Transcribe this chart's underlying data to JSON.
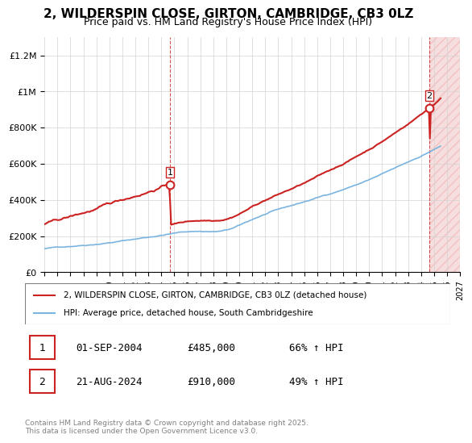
{
  "title": "2, WILDERSPIN CLOSE, GIRTON, CAMBRIDGE, CB3 0LZ",
  "subtitle": "Price paid vs. HM Land Registry's House Price Index (HPI)",
  "title_fontsize": 11,
  "subtitle_fontsize": 9,
  "ylabel": "",
  "ylim": [
    0,
    1300000
  ],
  "yticks": [
    0,
    200000,
    400000,
    600000,
    800000,
    1000000,
    1200000
  ],
  "ytick_labels": [
    "£0",
    "£200K",
    "£400K",
    "£600K",
    "£800K",
    "£1M",
    "£1.2M"
  ],
  "hpi_color": "#7ab4e0",
  "price_color": "#cc2222",
  "dashed_color": "#cc2222",
  "sale1_year": 2004.67,
  "sale1_price": 485000,
  "sale1_label": "1",
  "sale2_year": 2024.64,
  "sale2_price": 910000,
  "sale2_label": "2",
  "legend_line1": "2, WILDERSPIN CLOSE, GIRTON, CAMBRIDGE, CB3 0LZ (detached house)",
  "legend_line2": "HPI: Average price, detached house, South Cambridgeshire",
  "note1_label": "1",
  "note1_date": "01-SEP-2004",
  "note1_price": "£485,000",
  "note1_hpi": "66% ↑ HPI",
  "note2_label": "2",
  "note2_date": "21-AUG-2024",
  "note2_price": "£910,000",
  "note2_hpi": "49% ↑ HPI",
  "footer": "Contains HM Land Registry data © Crown copyright and database right 2025.\nThis data is licensed under the Open Government Licence v3.0.",
  "xmin": 1995,
  "xmax": 2027,
  "xtick_years": [
    1995,
    1996,
    1997,
    1998,
    1999,
    2000,
    2001,
    2002,
    2003,
    2004,
    2005,
    2006,
    2007,
    2008,
    2009,
    2010,
    2011,
    2012,
    2013,
    2014,
    2015,
    2016,
    2017,
    2018,
    2019,
    2020,
    2021,
    2022,
    2023,
    2024,
    2025,
    2026,
    2027
  ]
}
